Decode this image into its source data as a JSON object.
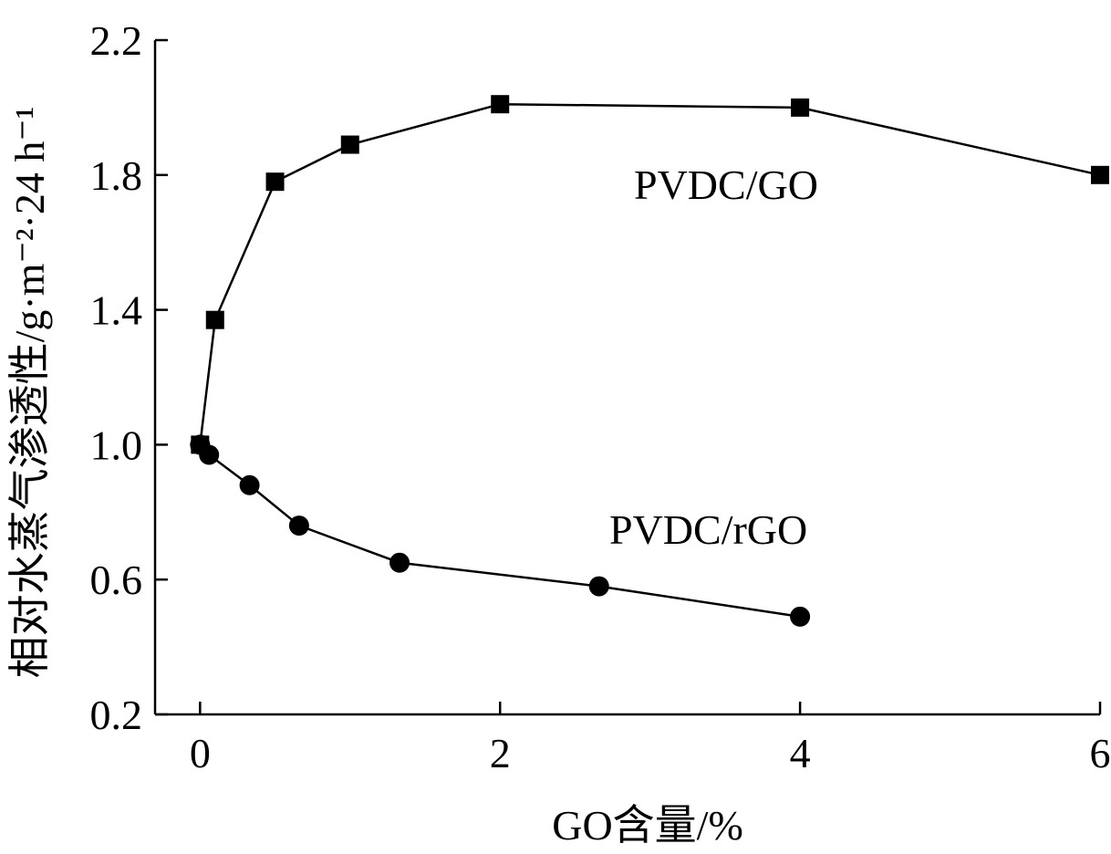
{
  "chart_data": {
    "type": "line",
    "xlabel": "GO含量/%",
    "ylabel": "相对水蒸气渗透性/g·m⁻²·24 h⁻¹",
    "xlim": [
      -0.3,
      6
    ],
    "ylim": [
      0.2,
      2.2
    ],
    "xticks": [
      0,
      2,
      4,
      6
    ],
    "yticks": [
      0.2,
      0.6,
      1.0,
      1.4,
      1.8,
      2.2
    ],
    "xtick_labels": [
      "0",
      "2",
      "4",
      "6"
    ],
    "ytick_labels": [
      "0.2",
      "0.6",
      "1.0",
      "1.4",
      "1.8",
      "2.2"
    ],
    "grid": false,
    "legend": "none",
    "series": [
      {
        "name": "PVDC/GO",
        "marker": "square",
        "x": [
          0,
          0.1,
          0.5,
          1.0,
          2.0,
          4.0,
          6.0
        ],
        "y": [
          1.0,
          1.37,
          1.78,
          1.89,
          2.01,
          2.0,
          1.8
        ]
      },
      {
        "name": "PVDC/rGO",
        "marker": "circle",
        "x": [
          0,
          0.06,
          0.33,
          0.66,
          1.33,
          2.66,
          4.0
        ],
        "y": [
          1.0,
          0.97,
          0.88,
          0.76,
          0.65,
          0.58,
          0.49
        ]
      }
    ]
  }
}
